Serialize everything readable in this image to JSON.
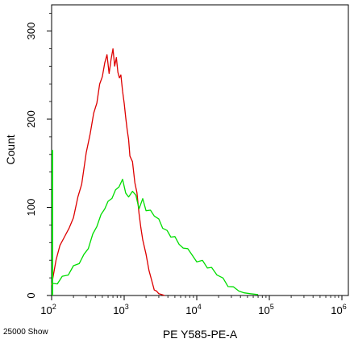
{
  "chart_data": {
    "type": "histogram",
    "title": "",
    "xlabel": "PE Y585-PE-A",
    "ylabel": "Count",
    "x_scale": "log",
    "xlim": [
      100,
      100000
    ],
    "ylim": [
      0,
      330
    ],
    "x_ticks": [
      {
        "value": 100,
        "base": "10",
        "exp": "2"
      },
      {
        "value": 1000,
        "base": "10",
        "exp": "3"
      },
      {
        "value": 10000,
        "base": "10",
        "exp": "4"
      },
      {
        "value": 100000,
        "base": "10",
        "exp": "5"
      },
      {
        "value": 1000000,
        "base": "10",
        "exp": "6"
      }
    ],
    "y_ticks": [
      "0",
      "100",
      "200",
      "300"
    ],
    "y_tick_values": [
      0,
      100,
      200,
      300
    ],
    "grid": false,
    "legend": "none",
    "footer_note": "25000 Show",
    "series": [
      {
        "color": "#dd0000",
        "x": [
          100,
          115,
          130,
          150,
          175,
          200,
          230,
          260,
          300,
          340,
          380,
          420,
          460,
          500,
          540,
          580,
          620,
          660,
          700,
          740,
          780,
          820,
          860,
          900,
          950,
          1000,
          1050,
          1100,
          1150,
          1200,
          1300,
          1400,
          1500,
          1600,
          1700,
          1800,
          2000,
          2200,
          2400,
          2600,
          2800,
          3000,
          3300,
          3600
        ],
        "y": [
          10,
          42,
          55,
          68,
          75,
          90,
          110,
          128,
          160,
          185,
          205,
          220,
          238,
          250,
          262,
          275,
          250,
          270,
          278,
          262,
          268,
          255,
          245,
          252,
          230,
          220,
          200,
          190,
          175,
          160,
          150,
          130,
          115,
          95,
          75,
          65,
          45,
          30,
          15,
          8,
          5,
          2,
          1,
          0
        ]
      },
      {
        "color": "#00dd00",
        "x": [
          100,
          120,
          140,
          170,
          200,
          240,
          280,
          320,
          370,
          420,
          480,
          540,
          600,
          680,
          760,
          850,
          950,
          1050,
          1150,
          1300,
          1450,
          1600,
          1800,
          2000,
          2300,
          2600,
          3000,
          3400,
          3900,
          4400,
          5000,
          5700,
          6500,
          7500,
          8500,
          10000,
          12000,
          14000,
          16000,
          19000,
          23000,
          27000,
          32000,
          38000,
          45000,
          55000,
          70000
        ],
        "y": [
          12,
          15,
          20,
          25,
          32,
          38,
          45,
          55,
          68,
          80,
          90,
          100,
          105,
          112,
          118,
          125,
          130,
          118,
          110,
          120,
          112,
          100,
          108,
          98,
          95,
          92,
          85,
          78,
          72,
          68,
          65,
          60,
          52,
          55,
          45,
          40,
          38,
          33,
          30,
          25,
          18,
          12,
          8,
          5,
          3,
          2,
          1
        ]
      }
    ]
  }
}
